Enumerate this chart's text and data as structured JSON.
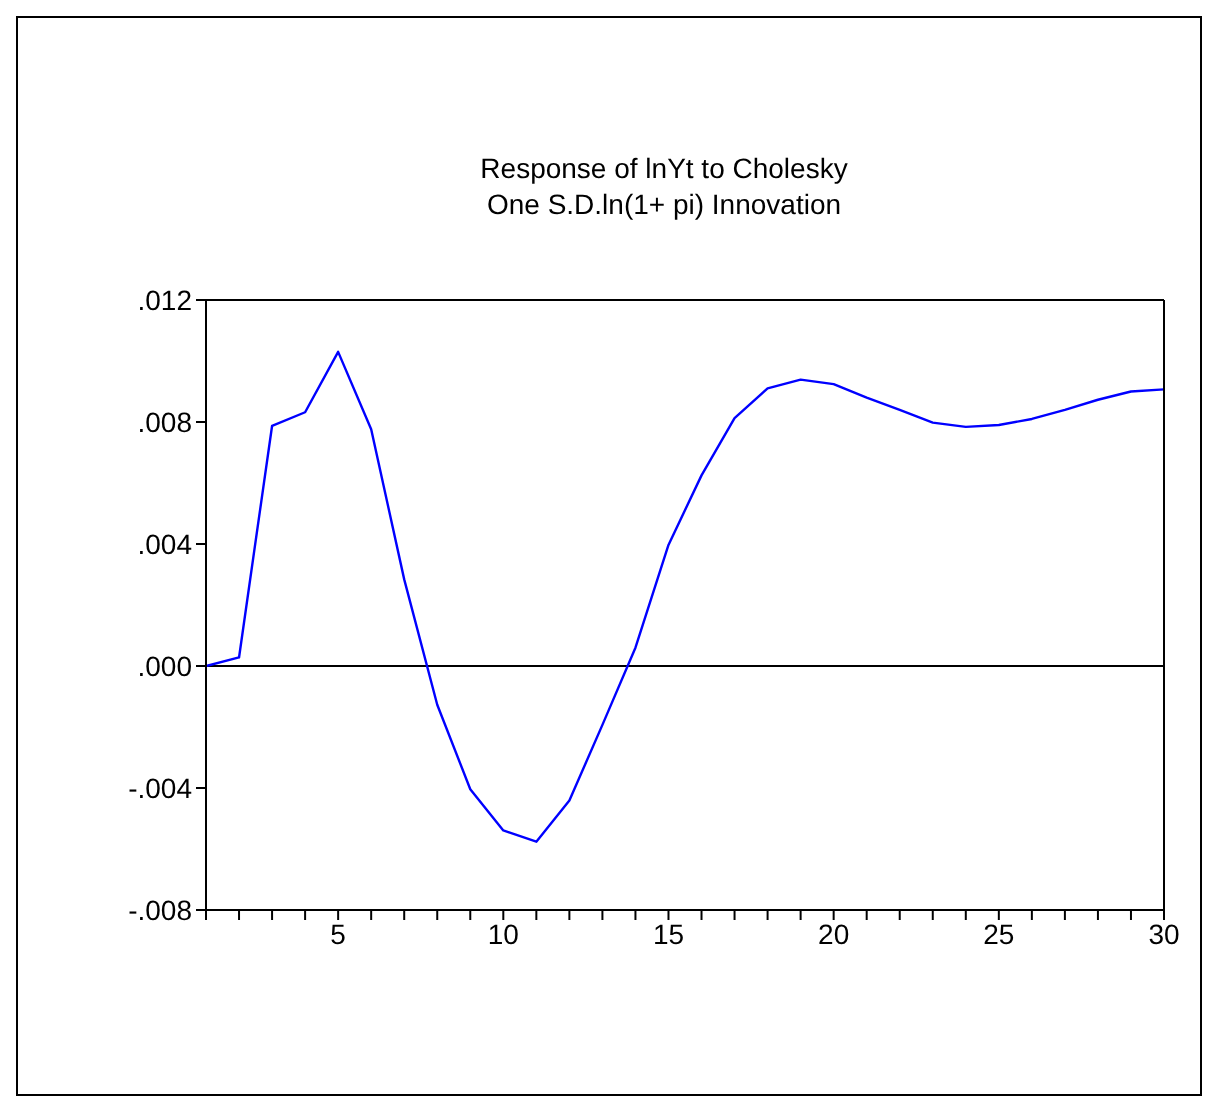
{
  "chart_data": {
    "type": "line",
    "title": "Response of lnYt to Cholesky\nOne S.D.ln(1+ pi) Innovation",
    "x": [
      1,
      2,
      3,
      4,
      5,
      6,
      7,
      8,
      9,
      10,
      11,
      12,
      13,
      14,
      15,
      16,
      17,
      18,
      19,
      20,
      21,
      22,
      23,
      24,
      25,
      26,
      27,
      28,
      29,
      30
    ],
    "series": [
      {
        "color": "#0000ff",
        "values": [
          0,
          0.00028,
          0.00787,
          0.00832,
          0.0103,
          0.00776,
          0.00284,
          -0.00127,
          -0.00404,
          -0.00539,
          -0.00576,
          -0.00441,
          -0.00193,
          0.0006,
          0.00397,
          0.00625,
          0.00813,
          0.0091,
          0.00939,
          0.00924,
          0.0088,
          0.0084,
          0.00798,
          0.00784,
          0.0079,
          0.0081,
          0.0084,
          0.00873,
          0.009,
          0.00907
        ]
      }
    ],
    "xlim": [
      1,
      30
    ],
    "xticks": [
      {
        "value": 1,
        "label": null
      },
      {
        "value": 2,
        "label": null
      },
      {
        "value": 3,
        "label": null
      },
      {
        "value": 4,
        "label": null
      },
      5,
      {
        "value": 6,
        "label": null
      },
      {
        "value": 7,
        "label": null
      },
      {
        "value": 8,
        "label": null
      },
      {
        "value": 9,
        "label": null
      },
      10,
      {
        "value": 11,
        "label": null
      },
      {
        "value": 12,
        "label": null
      },
      {
        "value": 13,
        "label": null
      },
      {
        "value": 14,
        "label": null
      },
      15,
      {
        "value": 16,
        "label": null
      },
      {
        "value": 17,
        "label": null
      },
      {
        "value": 18,
        "label": null
      },
      {
        "value": 19,
        "label": null
      },
      20,
      {
        "value": 21,
        "label": null
      },
      {
        "value": 22,
        "label": null
      },
      {
        "value": 23,
        "label": null
      },
      {
        "value": 24,
        "label": null
      },
      25,
      {
        "value": 26,
        "label": null
      },
      {
        "value": 27,
        "label": null
      },
      {
        "value": 28,
        "label": null
      },
      {
        "value": 29,
        "label": null
      },
      30
    ],
    "ylim": [
      -0.008,
      0.012
    ],
    "yticks": [
      {
        "value": -0.008,
        "label": "-.008"
      },
      {
        "value": -0.004,
        "label": "-.004"
      },
      {
        "value": 0,
        "label": ".000"
      },
      {
        "value": 0.004,
        "label": ".004"
      },
      {
        "value": 0.008,
        "label": ".008"
      },
      {
        "value": 0.012,
        "label": ".012"
      }
    ],
    "ref_lines": [
      {
        "axis": "y",
        "value": 0,
        "color": "#000000"
      }
    ],
    "grid": false,
    "legend": false,
    "marker": "none",
    "line_style": "solid"
  }
}
